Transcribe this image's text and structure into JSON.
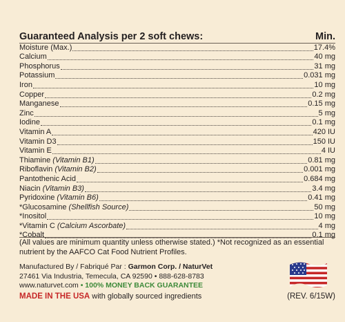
{
  "heading": {
    "title": "Guaranteed Analysis per 2 soft chews:",
    "min_label": "Min."
  },
  "analysis": [
    {
      "name": "Moisture (Max.)",
      "italic": "",
      "value": "17.4%"
    },
    {
      "name": "Calcium",
      "italic": "",
      "value": "40 mg"
    },
    {
      "name": "Phosphorus",
      "italic": "",
      "value": "31 mg"
    },
    {
      "name": "Potassium",
      "italic": "",
      "value": "0.031 mg"
    },
    {
      "name": "Iron",
      "italic": "",
      "value": "10 mg"
    },
    {
      "name": "Copper",
      "italic": "",
      "value": "0.2 mg"
    },
    {
      "name": "Manganese",
      "italic": "",
      "value": "0.15 mg"
    },
    {
      "name": "Zinc",
      "italic": "",
      "value": "5 mg"
    },
    {
      "name": "Iodine",
      "italic": "",
      "value": "0.1 mg"
    },
    {
      "name": "Vitamin A",
      "italic": "",
      "value": "420 IU"
    },
    {
      "name": "Vitamin D3",
      "italic": "",
      "value": "150 IU"
    },
    {
      "name": "Vitamin E",
      "italic": "",
      "value": "4 IU"
    },
    {
      "name": "Thiamine ",
      "italic": "(Vitamin B1)",
      "value": "0.81 mg"
    },
    {
      "name": "Riboflavin ",
      "italic": "(Vitamin B2)",
      "value": "0.001 mg"
    },
    {
      "name": "Pantothenic Acid",
      "italic": "",
      "value": "0.684 mg"
    },
    {
      "name": "Niacin ",
      "italic": "(Vitamin B3)",
      "value": "3.4 mg"
    },
    {
      "name": "Pyridoxine ",
      "italic": "(Vitamin B6)",
      "value": "0.41 mg"
    },
    {
      "name": "*Glucosamine ",
      "italic": "(Shellfish Source)",
      "value": "50 mg"
    },
    {
      "name": "*Inositol",
      "italic": "",
      "value": "10 mg"
    },
    {
      "name": "*Vitamin C ",
      "italic": "(Calcium Ascorbate)",
      "value": "4 mg"
    },
    {
      "name": "*Cobalt",
      "italic": "",
      "value": "0.1 mg"
    }
  ],
  "footnote": "(All values are minimum quantity unless otherwise stated.) *Not recognized as an essential nutrient by the AAFCO Cat Food Nutrient Profiles.",
  "manufacturer": {
    "prefix": "Manufactured By / Fabriqué Par : ",
    "company": "Garmon Corp. / NaturVet",
    "address": "27461 Via Industria, Temecula, CA 92590 • 888-628-8783",
    "website": "www.naturvet.com",
    "separator": " • ",
    "guarantee": "100% MONEY BACK GUARANTEE"
  },
  "origin": {
    "made_in": "MADE IN THE USA",
    "note": " with globally sourced ingredients"
  },
  "revision": "(REV. 6/15W)",
  "colors": {
    "background": "#f8ecd6",
    "text": "#231f20",
    "green": "#3e8a3a",
    "red": "#c62828",
    "flag_blue": "#2b3a8c"
  },
  "icons": {
    "flag": "us-flag-icon"
  }
}
